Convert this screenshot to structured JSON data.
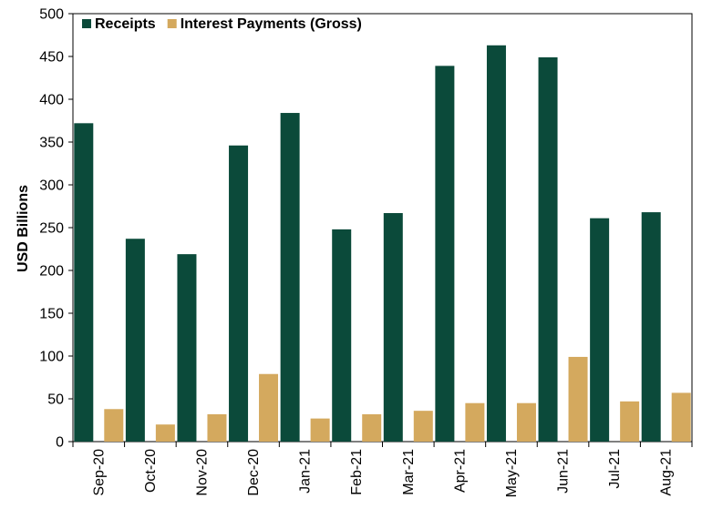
{
  "chart_data": {
    "type": "bar",
    "title": "",
    "xlabel": "",
    "ylabel": "USD Billions",
    "ylim": [
      0,
      500
    ],
    "yticks": [
      0,
      50,
      100,
      150,
      200,
      250,
      300,
      350,
      400,
      450,
      500
    ],
    "grid": false,
    "legend_position": "top-left",
    "categories": [
      "Sep-20",
      "Oct-20",
      "Nov-20",
      "Dec-20",
      "Jan-21",
      "Feb-21",
      "Mar-21",
      "Apr-21",
      "May-21",
      "Jun-21",
      "Jul-21",
      "Aug-21"
    ],
    "series": [
      {
        "name": "Receipts",
        "color": "#0b4a3a",
        "values": [
          372,
          237,
          219,
          346,
          384,
          248,
          267,
          439,
          463,
          449,
          261,
          268
        ]
      },
      {
        "name": "Interest Payments (Gross)",
        "color": "#d4a95e",
        "values": [
          38,
          20,
          32,
          79,
          27,
          32,
          36,
          45,
          45,
          99,
          47,
          57
        ]
      }
    ]
  }
}
